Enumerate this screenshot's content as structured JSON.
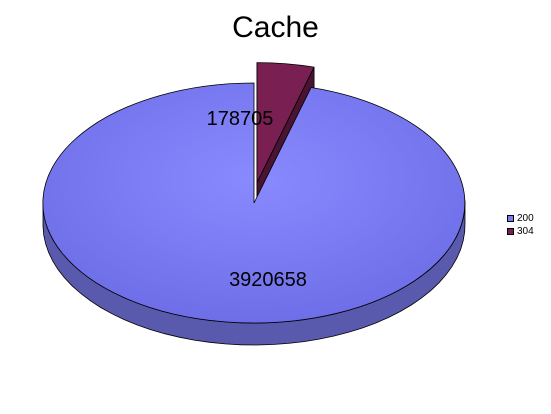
{
  "chart_data": {
    "type": "pie",
    "title": "Cache",
    "legend_position": "right",
    "three_d": true,
    "slices": [
      {
        "name": "200",
        "value": 3920658,
        "label": "3920658",
        "color": "#7b7bf0",
        "exploded": false
      },
      {
        "name": "304",
        "value": 178705,
        "label": "178705",
        "color": "#7a1f52",
        "exploded": true
      }
    ]
  }
}
